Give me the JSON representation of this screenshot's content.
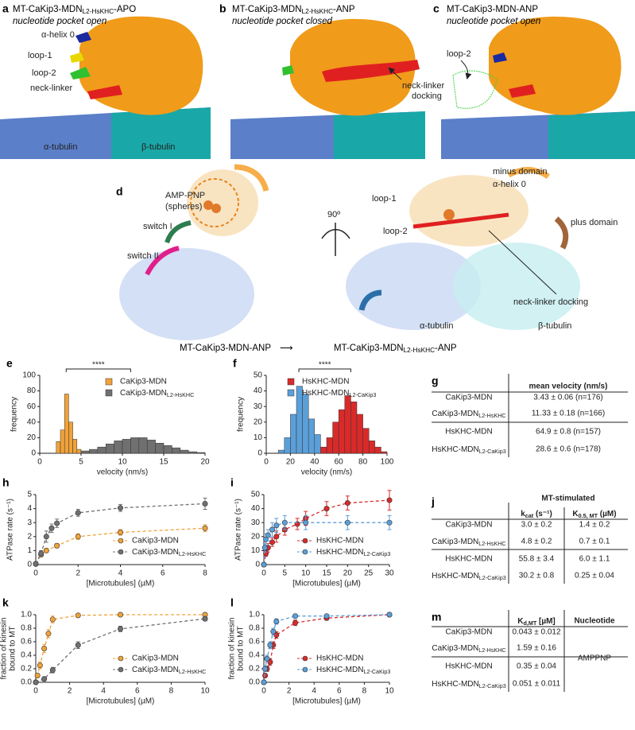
{
  "panels": {
    "a": {
      "letter": "a",
      "title": {
        "main": "MT-CaKip3-MDN",
        "sub": "L2-HsKHC",
        "suffix": "-APO"
      },
      "subtitle": "nucleotide pocket open",
      "labels": [
        "α-helix 0",
        "loop-1",
        "loop-2",
        "neck-linker",
        "α-tubulin",
        "β-tubulin"
      ]
    },
    "b": {
      "letter": "b",
      "title": {
        "main": "MT-CaKip3-MDN",
        "sub": "L2-HsKHC",
        "suffix": "-ANP"
      },
      "subtitle": "nucleotide pocket closed",
      "labels": [
        "neck-linker",
        "docking"
      ]
    },
    "c": {
      "letter": "c",
      "title": "MT-CaKip3-MDN-ANP",
      "subtitle": "nucleotide pocket open",
      "labels": [
        "loop-2"
      ]
    },
    "d": {
      "letter": "d",
      "labels": [
        "AMP-PNP",
        "(spheres)",
        "switch I",
        "switch II",
        "90º",
        "minus domain",
        "α-helix 0",
        "loop-1",
        "loop-2",
        "plus domain",
        "neck-linker docking",
        "α-tubulin",
        "β-tubulin"
      ],
      "from": "MT-CaKip3-MDN-ANP",
      "arrow": "⟶",
      "to": {
        "main": "MT-CaKip3-MDN",
        "sub": "L2-HsKHC",
        "suffix": "-ANP"
      }
    }
  },
  "chart_data": [
    {
      "type": "histogram",
      "panel": "e",
      "xlabel": "velocity (nm/s)",
      "ylabel": "frequency",
      "annotation": "****",
      "legend": "upper right",
      "xlim": [
        0,
        20
      ],
      "xticks": [
        0,
        5,
        10,
        15,
        20
      ],
      "ylim": [
        0,
        100
      ],
      "yticks": [
        0,
        20,
        40,
        60,
        80,
        100
      ],
      "series": [
        {
          "name": "CaKip3-MDN",
          "color": "#f0a23a",
          "bins": [
            2,
            2.5,
            3,
            3.5,
            4,
            4.5,
            5
          ],
          "values": [
            15,
            30,
            76,
            40,
            18,
            5
          ]
        },
        {
          "name": {
            "main": "CaKip3-MDN",
            "sub": "L2-HsKHC"
          },
          "color": "#707070",
          "bins": [
            5,
            6,
            7,
            8,
            9,
            10,
            11,
            12,
            13,
            14,
            15,
            16,
            17,
            18,
            19,
            20
          ],
          "values": [
            3,
            5,
            8,
            12,
            16,
            18,
            20,
            20,
            17,
            13,
            10,
            7,
            4,
            2,
            1
          ]
        }
      ]
    },
    {
      "type": "histogram",
      "panel": "f",
      "xlabel": "velocity (nm/s)",
      "ylabel": "frequency",
      "annotation": "****",
      "legend": "upper right",
      "xlim": [
        0,
        100
      ],
      "xticks": [
        0,
        20,
        40,
        60,
        80,
        100
      ],
      "ylim": [
        0,
        50
      ],
      "yticks": [
        0,
        10,
        20,
        30,
        40,
        50
      ],
      "series": [
        {
          "name": "HsKHC-MDN",
          "color": "#d92a2a",
          "bins": [
            45,
            50,
            55,
            60,
            65,
            70,
            75,
            80,
            85,
            90,
            95,
            100
          ],
          "values": [
            4,
            10,
            20,
            28,
            37,
            33,
            25,
            16,
            8,
            4,
            1
          ]
        },
        {
          "name": {
            "main": "HsKHC-MDN",
            "sub": "L2-CaKip3"
          },
          "color": "#5b9fd9",
          "bins": [
            10,
            15,
            20,
            25,
            30,
            35,
            40,
            45
          ],
          "values": [
            2,
            10,
            25,
            43,
            38,
            22,
            12
          ]
        }
      ]
    },
    {
      "type": "line",
      "panel": "h",
      "xlabel": "[Microtubules] (µM)",
      "ylabel": "ATPase rate (s⁻¹)",
      "legend": "lower right",
      "xlim": [
        0,
        8
      ],
      "xticks": [
        0,
        2,
        4,
        6,
        8
      ],
      "ylim": [
        0,
        5
      ],
      "yticks": [
        0,
        1,
        2,
        3,
        4,
        5
      ],
      "series": [
        {
          "name": "CaKip3-MDN",
          "color": "#f0a23a",
          "x": [
            0,
            0.25,
            0.5,
            1,
            2,
            4,
            8
          ],
          "values": [
            0.05,
            0.7,
            1.0,
            1.35,
            2.0,
            2.3,
            2.6
          ],
          "errors": [
            0.05,
            0.1,
            0.15,
            0.15,
            0.2,
            0.2,
            0.25
          ]
        },
        {
          "name": {
            "main": "CaKip3-MDN",
            "sub": "L2-HsKHC"
          },
          "color": "#707070",
          "x": [
            0,
            0.25,
            0.5,
            0.75,
            1,
            2,
            4,
            8
          ],
          "values": [
            0.05,
            0.8,
            2.0,
            2.6,
            2.95,
            3.7,
            4.05,
            4.35
          ],
          "errors": [
            0.05,
            0.2,
            0.4,
            0.3,
            0.3,
            0.25,
            0.25,
            0.4
          ]
        }
      ]
    },
    {
      "type": "line",
      "panel": "i",
      "xlabel": "[Microtubules] (µM)",
      "ylabel": "ATPase rate (s⁻¹)",
      "legend": "lower right",
      "xlim": [
        0,
        30
      ],
      "xticks": [
        0,
        5,
        10,
        15,
        20,
        25,
        30
      ],
      "ylim": [
        0,
        50
      ],
      "yticks": [
        0,
        10,
        20,
        30,
        40,
        50
      ],
      "series": [
        {
          "name": "HsKHC-MDN",
          "color": "#d92a2a",
          "x": [
            0,
            0.5,
            1,
            2,
            3,
            5,
            8,
            10,
            15,
            20,
            30
          ],
          "values": [
            0,
            8,
            12,
            16,
            20,
            25,
            29,
            33,
            40,
            44,
            46
          ],
          "errors": [
            1,
            2,
            3,
            3,
            4,
            4,
            4,
            5,
            5,
            5,
            7
          ]
        },
        {
          "name": {
            "main": "HsKHC-MDN",
            "sub": "L2-CaKip3"
          },
          "color": "#5b9fd9",
          "x": [
            0,
            0.25,
            0.5,
            1,
            2,
            3,
            5,
            10,
            20,
            30
          ],
          "values": [
            0,
            12,
            18,
            21,
            25,
            28,
            30,
            30,
            30,
            30
          ],
          "errors": [
            1,
            3,
            4,
            4,
            5,
            5,
            5,
            5,
            5,
            5
          ]
        }
      ]
    },
    {
      "type": "line",
      "panel": "k",
      "xlabel": "[Microtubules] (µM)",
      "ylabel": [
        "fraction of kinesin",
        "bound to MT"
      ],
      "legend": "lower right",
      "xlim": [
        0,
        10
      ],
      "xticks": [
        0,
        2,
        4,
        6,
        8,
        10
      ],
      "ylim": [
        0,
        1.0
      ],
      "yticks": [
        {
          "value": 0,
          "label": "0.0"
        },
        {
          "value": 0.2,
          "label": "0.2"
        },
        {
          "value": 0.4,
          "label": "0.4"
        },
        {
          "value": 0.6,
          "label": "0.6"
        },
        {
          "value": 0.8,
          "label": "0.8"
        },
        {
          "value": 1.0,
          "label": "1.0"
        }
      ],
      "series": [
        {
          "name": "CaKip3-MDN",
          "color": "#f0a23a",
          "x": [
            0,
            0.1,
            0.25,
            0.5,
            0.75,
            1,
            2.5,
            5,
            10
          ],
          "values": [
            0,
            0.1,
            0.25,
            0.5,
            0.72,
            0.93,
            0.99,
            1.0,
            1.0
          ],
          "errors": [
            0,
            0.03,
            0.05,
            0.06,
            0.06,
            0.05,
            0.02,
            0.02,
            0.02
          ]
        },
        {
          "name": {
            "main": "CaKip3-MDN",
            "sub": "L2-HsKHC"
          },
          "color": "#707070",
          "x": [
            0,
            0.5,
            1,
            2.5,
            5,
            10
          ],
          "values": [
            0,
            0.05,
            0.18,
            0.55,
            0.79,
            0.94
          ],
          "errors": [
            0,
            0.03,
            0.04,
            0.05,
            0.04,
            0.03
          ]
        }
      ]
    },
    {
      "type": "line",
      "panel": "l",
      "xlabel": "[Microtubules] (µM)",
      "ylabel": [
        "fraction of kinesin",
        "bound to MT"
      ],
      "legend": "lower right",
      "xlim": [
        0,
        10
      ],
      "xticks": [
        0,
        2,
        4,
        6,
        8,
        10
      ],
      "ylim": [
        0,
        1.0
      ],
      "yticks": [
        {
          "value": 0,
          "label": "0.0"
        },
        {
          "value": 0.2,
          "label": "0.2"
        },
        {
          "value": 0.4,
          "label": "0.4"
        },
        {
          "value": 0.6,
          "label": "0.6"
        },
        {
          "value": 0.8,
          "label": "0.8"
        },
        {
          "value": 1.0,
          "label": "1.0"
        }
      ],
      "series": [
        {
          "name": "HsKHC-MDN",
          "color": "#d92a2a",
          "x": [
            0,
            0.1,
            0.25,
            0.5,
            0.75,
            1,
            2.5,
            5,
            10
          ],
          "values": [
            0,
            0.1,
            0.2,
            0.3,
            0.55,
            0.7,
            0.88,
            0.95,
            1.0
          ],
          "errors": [
            0,
            0.03,
            0.04,
            0.05,
            0.05,
            0.05,
            0.04,
            0.03,
            0.02
          ]
        },
        {
          "name": {
            "main": "HsKHC-MDN",
            "sub": "L2-CaKip3"
          },
          "color": "#5b9fd9",
          "x": [
            0,
            0.1,
            0.25,
            0.5,
            0.75,
            1,
            2.5,
            5,
            10
          ],
          "values": [
            0,
            0.2,
            0.35,
            0.55,
            0.75,
            0.9,
            0.98,
            0.98,
            1.0
          ],
          "errors": [
            0,
            0.04,
            0.05,
            0.05,
            0.05,
            0.04,
            0.03,
            0.02,
            0.02
          ]
        }
      ]
    }
  ],
  "tables": {
    "g": {
      "letter": "g",
      "header": [
        "mean velocity (nm/s)"
      ],
      "colors": [
        "#f0a23a",
        "#7a7a7a",
        "#d92a2a",
        "#4a9ad8"
      ],
      "rows": [
        [
          "CaKip3-MDN",
          "3.43 ± 0.06 (n=176)"
        ],
        [
          {
            "main": "CaKip3-MDN",
            "sub": "L2-HsKHC"
          },
          "11.33 ± 0.18 (n=166)"
        ],
        [
          "HsKHC-MDN",
          "64.9 ± 0.8 (n=157)"
        ],
        [
          {
            "main": "HsKHC-MDN",
            "sub": "L2-CaKip3"
          },
          "28.6 ± 0.6 (n=178)"
        ]
      ]
    },
    "j": {
      "letter": "j",
      "group": "MT-stimulated",
      "header": [
        {
          "main": "k",
          "sub": "cat",
          "suffix": " (s⁻¹)"
        },
        {
          "main": "K",
          "sub": "0.5, MT",
          "suffix": " (µM)"
        }
      ],
      "colors": [
        "#f0a23a",
        "#7a7a7a",
        "#d92a2a",
        "#4a9ad8"
      ],
      "rows": [
        [
          "CaKip3-MDN",
          "3.0 ± 0.2",
          "1.4 ± 0.2"
        ],
        [
          {
            "main": "CaKip3-MDN",
            "sub": "L2-HsKHC"
          },
          "4.8 ± 0.2",
          "0.7 ± 0.1"
        ],
        [
          "HsKHC-MDN",
          "55.8 ± 3.4",
          "6.0 ± 1.1"
        ],
        [
          {
            "main": "HsKHC-MDN",
            "sub": "L2-CaKip3"
          },
          "30.2 ± 0.8",
          "0.25 ± 0.04"
        ]
      ]
    },
    "m": {
      "letter": "m",
      "header": [
        {
          "main": "K",
          "sub": "d,MT",
          "suffix": " [µM]"
        },
        "Nucleotide"
      ],
      "nucleotide": "AMPPNP",
      "colors": [
        "#f0a23a",
        "#7a7a7a",
        "#d92a2a",
        "#4a9ad8"
      ],
      "rows": [
        [
          "CaKip3-MDN",
          "0.043 ± 0.012"
        ],
        [
          {
            "main": "CaKip3-MDN",
            "sub": "L2-HsKHC"
          },
          "1.59 ± 0.16"
        ],
        [
          "HsKHC-MDN",
          "0.35 ± 0.04"
        ],
        [
          {
            "main": "HsKHC-MDN",
            "sub": "L2-CaKip3"
          },
          "0.051 ± 0.011"
        ]
      ]
    }
  }
}
